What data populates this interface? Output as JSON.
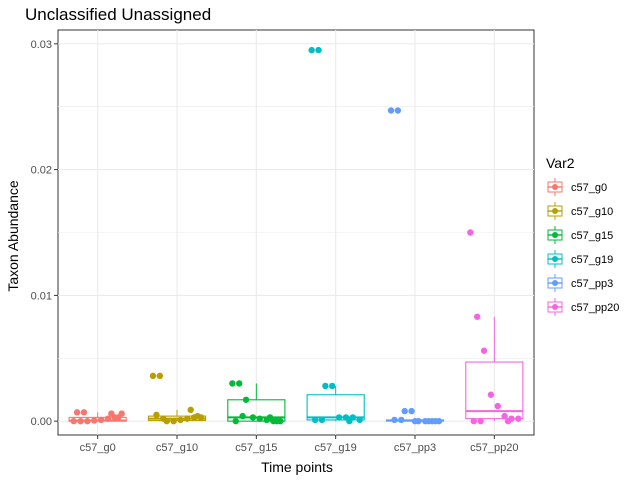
{
  "chart_data": {
    "type": "box",
    "title": "Unclassified Unassigned",
    "xlabel": "Time points",
    "ylabel": "Taxon Abundance",
    "ylim": [
      -0.0011,
      0.0311
    ],
    "yticks": [
      0.0,
      0.01,
      0.02,
      0.03
    ],
    "ytick_labels": [
      "0.00",
      "0.01",
      "0.02",
      "0.03"
    ],
    "grid": true,
    "legend": {
      "title": "Var2",
      "placement": "right"
    },
    "categories": [
      "c57_g0",
      "c57_g10",
      "c57_g15",
      "c57_g19",
      "c57_pp3",
      "c57_pp20"
    ],
    "series": [
      {
        "name": "c57_g0",
        "color": "#F8766D",
        "box": {
          "q1": 0.0,
          "median": 5e-05,
          "q3": 0.0003,
          "whisker_low": 0.0,
          "whisker_high": 0.0007
        },
        "points": [
          0.0,
          0.0,
          0.0,
          5e-05,
          0.0001,
          0.0002,
          0.0003,
          0.0006,
          0.0007,
          0.0007,
          0.0006,
          0.0003
        ]
      },
      {
        "name": "c57_g10",
        "color": "#B79F00",
        "box": {
          "q1": 5e-05,
          "median": 0.0002,
          "q3": 0.0004,
          "whisker_low": 0.0,
          "whisker_high": 0.0009
        },
        "points": [
          0.0036,
          0.0036,
          0.0,
          0.0,
          0.0001,
          0.0002,
          0.0003,
          0.0003,
          0.0005,
          0.0002,
          0.0009,
          0.0004
        ]
      },
      {
        "name": "c57_g15",
        "color": "#00BA38",
        "box": {
          "q1": 0.0,
          "median": 0.0003,
          "q3": 0.0017,
          "whisker_low": 0.0,
          "whisker_high": 0.003
        },
        "points": [
          0.003,
          0.003,
          0.0017,
          0.0003,
          0.0002,
          0.0001,
          0.0,
          0.0,
          0.0,
          0.0004,
          0.0003,
          0.0
        ]
      },
      {
        "name": "c57_g19",
        "color": "#00BFC4",
        "box": {
          "q1": 0.0001,
          "median": 0.0003,
          "q3": 0.0021,
          "whisker_low": 0.0,
          "whisker_high": 0.0028
        },
        "points": [
          0.0295,
          0.0295,
          0.0028,
          0.0028,
          0.0003,
          0.0003,
          0.0003,
          0.0001,
          0.0001,
          0.0001,
          0.0
        ]
      },
      {
        "name": "c57_pp3",
        "color": "#619CFF",
        "box": {
          "q1": 0.0,
          "median": 5e-05,
          "q3": 0.0001,
          "whisker_low": 0.0,
          "whisker_high": 0.0002
        },
        "points": [
          0.0247,
          0.0247,
          0.0008,
          0.0008,
          0.0,
          0.0,
          0.0,
          0.0,
          0.0001,
          0.0001,
          0.0,
          0.0,
          0.0
        ]
      },
      {
        "name": "c57_pp20",
        "color": "#F564E3",
        "box": {
          "q1": 0.0002,
          "median": 0.0008,
          "q3": 0.0047,
          "whisker_low": 0.0,
          "whisker_high": 0.0083
        },
        "points": [
          0.015,
          0.0083,
          0.0056,
          0.0021,
          0.0012,
          0.0004,
          0.0002,
          0.0002,
          0.0,
          0.0,
          0.0
        ]
      }
    ]
  }
}
